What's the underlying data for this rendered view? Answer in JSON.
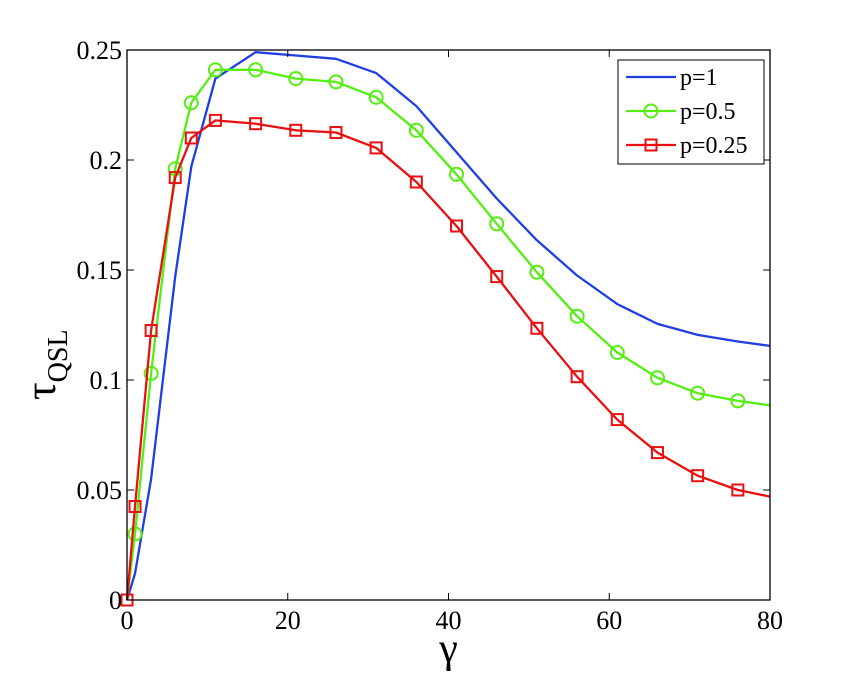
{
  "chart_data": {
    "type": "line",
    "title": "",
    "xlabel": "γ",
    "ylabel": {
      "main": "τ",
      "subscript": "QSL"
    },
    "xlim": [
      0,
      80
    ],
    "ylim": [
      0,
      0.25
    ],
    "xticks": [
      0,
      20,
      40,
      60,
      80
    ],
    "xtick_labels": [
      "0",
      "20",
      "40",
      "60",
      "80"
    ],
    "yticks": [
      0,
      0.05,
      0.1,
      0.15,
      0.2,
      0.25
    ],
    "ytick_labels": [
      "0",
      "0.05",
      "0.1",
      "0.15",
      "0.2",
      "0.25"
    ],
    "grid": false,
    "legend_position": "top-right",
    "series": [
      {
        "name": "p=1",
        "color": "#1f3fe0",
        "marker": "none",
        "x": [
          0,
          1,
          3,
          6,
          8,
          11,
          16,
          21,
          26,
          31,
          36,
          41,
          46,
          51,
          56,
          61,
          66,
          71,
          76,
          80
        ],
        "y": [
          0,
          0.012,
          0.055,
          0.147,
          0.197,
          0.237,
          0.249,
          0.2475,
          0.246,
          0.2395,
          0.2245,
          0.2035,
          0.1825,
          0.1635,
          0.1475,
          0.1345,
          0.1255,
          0.1205,
          0.1175,
          0.1155
        ]
      },
      {
        "name": "p=0.5",
        "color": "#55ee11",
        "marker": "circle",
        "x": [
          0,
          1,
          3,
          6,
          8,
          11,
          16,
          21,
          26,
          31,
          36,
          41,
          46,
          51,
          56,
          61,
          66,
          71,
          76,
          80
        ],
        "y": [
          0,
          0.03,
          0.103,
          0.196,
          0.226,
          0.241,
          0.241,
          0.237,
          0.2355,
          0.2285,
          0.2135,
          0.1935,
          0.171,
          0.149,
          0.129,
          0.1125,
          0.101,
          0.094,
          0.0905,
          0.0885
        ],
        "marker_x": [
          1,
          3,
          6,
          8,
          11,
          16,
          21,
          26,
          31,
          36,
          41,
          46,
          51,
          56,
          61,
          66,
          71,
          76
        ]
      },
      {
        "name": "p=0.25",
        "color": "#e81010",
        "marker": "square",
        "x": [
          0,
          1,
          3,
          6,
          8,
          11,
          16,
          21,
          26,
          31,
          36,
          41,
          46,
          51,
          56,
          61,
          66,
          71,
          76,
          80
        ],
        "y": [
          0,
          0.0425,
          0.1225,
          0.192,
          0.21,
          0.218,
          0.2165,
          0.2135,
          0.2125,
          0.2055,
          0.19,
          0.17,
          0.147,
          0.1235,
          0.1015,
          0.082,
          0.067,
          0.0565,
          0.05,
          0.047
        ],
        "marker_x": [
          0,
          1,
          3,
          6,
          8,
          11,
          16,
          21,
          26,
          31,
          36,
          41,
          46,
          51,
          56,
          61,
          66,
          71,
          76
        ]
      }
    ]
  }
}
